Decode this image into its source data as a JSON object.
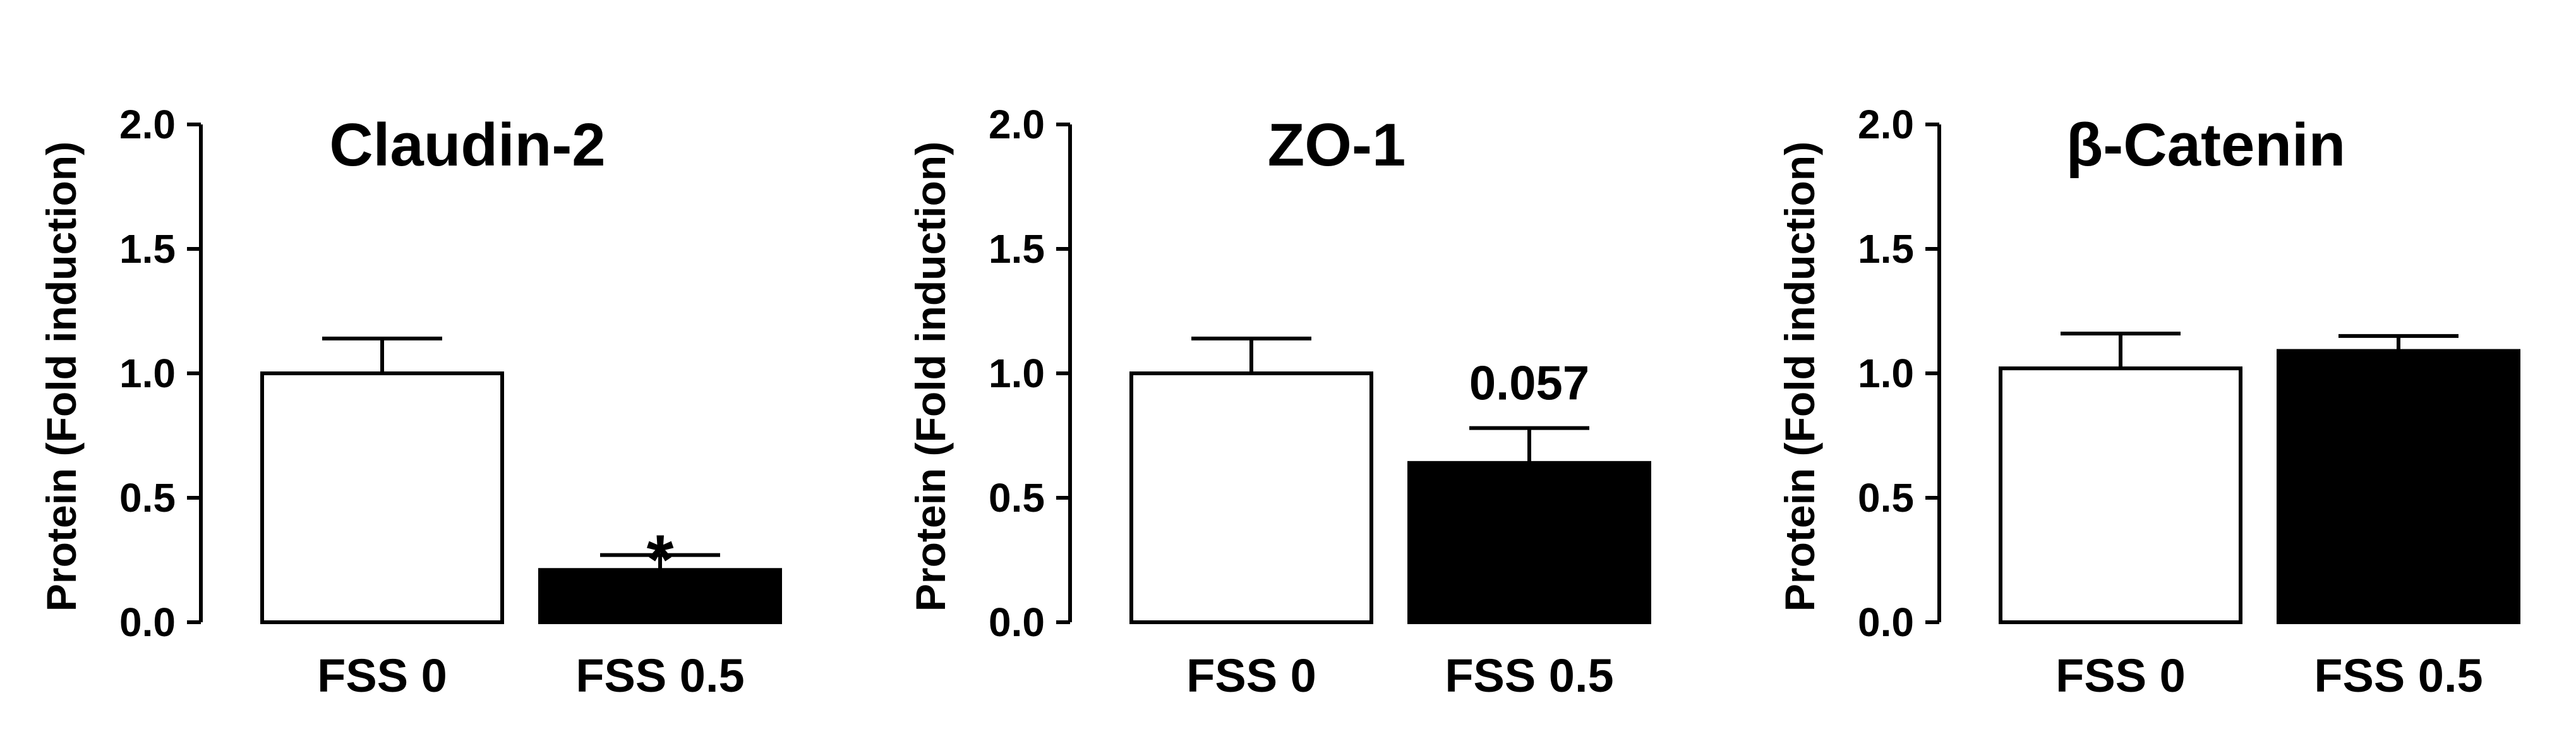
{
  "chart_data": [
    {
      "type": "bar",
      "title": "Claudin-2",
      "ylabel": "Protein (Fold induction)",
      "xlabel": "",
      "categories": [
        "FSS 0",
        "FSS 0.5"
      ],
      "values": [
        1.0,
        0.21
      ],
      "errors": [
        0.14,
        0.06
      ],
      "fills": [
        "#ffffff",
        "#000000"
      ],
      "annotation": "*",
      "ylim": [
        0,
        2.0
      ],
      "yticks": [
        "0.0",
        "0.5",
        "1.0",
        "1.5",
        "2.0"
      ],
      "grid": false
    },
    {
      "type": "bar",
      "title": "ZO-1",
      "ylabel": "Protein (Fold induction)",
      "xlabel": "",
      "categories": [
        "FSS 0",
        "FSS 0.5"
      ],
      "values": [
        1.0,
        0.64
      ],
      "errors": [
        0.14,
        0.14
      ],
      "fills": [
        "#ffffff",
        "#000000"
      ],
      "annotation": "0.057",
      "ylim": [
        0,
        2.0
      ],
      "yticks": [
        "0.0",
        "0.5",
        "1.0",
        "1.5",
        "2.0"
      ],
      "grid": false
    },
    {
      "type": "bar",
      "title": "β-Catenin",
      "ylabel": "Protein (Fold induction)",
      "xlabel": "",
      "categories": [
        "FSS 0",
        "FSS 0.5"
      ],
      "values": [
        1.02,
        1.09
      ],
      "errors": [
        0.14,
        0.06
      ],
      "fills": [
        "#ffffff",
        "#000000"
      ],
      "annotation": "",
      "ylim": [
        0,
        2.0
      ],
      "yticks": [
        "0.0",
        "0.5",
        "1.0",
        "1.5",
        "2.0"
      ],
      "grid": false
    }
  ]
}
